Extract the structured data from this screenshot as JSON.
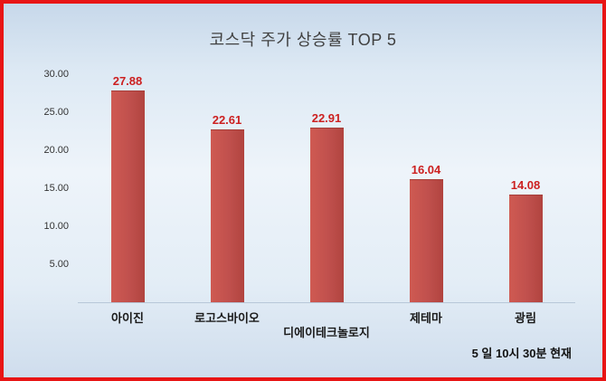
{
  "chart_data": {
    "type": "bar",
    "title": "코스닥 주가 상승률 TOP 5",
    "categories": [
      "아이진",
      "로고스바이오",
      "디에이테크놀로지",
      "제테마",
      "광림"
    ],
    "values": [
      27.88,
      22.61,
      22.91,
      16.04,
      14.08
    ],
    "value_labels": [
      "27.88",
      "22.61",
      "22.91",
      "16.04",
      "14.08"
    ],
    "ylim": [
      0,
      30
    ],
    "yticks": [
      5,
      10,
      15,
      20,
      25,
      30
    ],
    "ytick_labels": [
      "5.00",
      "10.00",
      "15.00",
      "20.00",
      "25.00",
      "30.00"
    ],
    "grid": false,
    "legend": "none",
    "bar_color": "#c0504d",
    "value_label_color": "#cc2020"
  },
  "footnote": "5 일 10시  30분 현재"
}
